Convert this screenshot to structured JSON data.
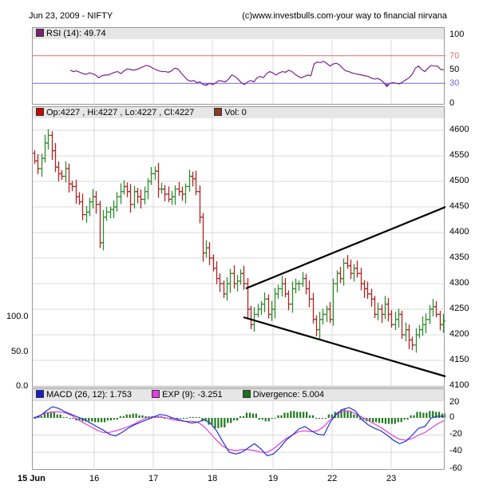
{
  "header": {
    "date_symbol": "Jun 23, 2009 -  NIFTY",
    "copyright": "(c)www.investbulls.com-your way to financial nirvana"
  },
  "colors": {
    "up_bar": "#2e8b2e",
    "down_bar": "#b22222",
    "rsi_line": "#7f1f8f",
    "rsi_fill": "#6a5cff",
    "line_70": "#e06a6a",
    "line_30": "#6a6ad6",
    "macd_line": "#2233cc",
    "exp_line": "#e23ce2",
    "divergence": "#1e7a1e",
    "grid": "#d8d8d8",
    "panel_header": "#e6e6e6"
  },
  "rsi_panel": {
    "legend": {
      "label": "RSI (14): 49.74",
      "color": "#7f1f6f"
    },
    "axis": [
      "100",
      "70",
      "50",
      "30",
      "0"
    ]
  },
  "price_panel": {
    "legend": [
      {
        "label": "Op:4227 , Hi:4227 , Lo:4227 , Cl:4227",
        "color": "#cc0000"
      },
      {
        "label": "Vol: 0",
        "color": "#8b3a2a"
      }
    ],
    "axis_right": [
      "4600",
      "4550",
      "4500",
      "4450",
      "4400",
      "4350",
      "4300",
      "4250",
      "4200",
      "4150",
      "4100"
    ],
    "axis_left": [
      "100.0",
      "50.0",
      "0.0"
    ]
  },
  "macd_panel": {
    "legend": [
      {
        "label": "MACD (26, 12): 1.753",
        "color": "#1a1acc"
      },
      {
        "label": "EXP (9): -3.251",
        "color": "#e23ce2"
      },
      {
        "label": "Divergence: 5.004",
        "color": "#1e6e1e"
      }
    ],
    "axis": [
      "20",
      "0",
      "-20",
      "-40",
      "-60"
    ]
  },
  "x_axis": [
    "15 Jun",
    "16",
    "17",
    "18",
    "19",
    "22",
    "23"
  ],
  "chart_data": [
    {
      "type": "line",
      "title": "RSI (14)",
      "current_value": 49.74,
      "ylim": [
        0,
        100
      ],
      "reference_lines": [
        70,
        30
      ],
      "x": [
        "15 Jun",
        "16",
        "17",
        "18",
        "19",
        "22",
        "23"
      ],
      "values": [
        49,
        47,
        48,
        46,
        44,
        43,
        45,
        44,
        42,
        38,
        41,
        42,
        42,
        44,
        46,
        47,
        44,
        48,
        51,
        50,
        49,
        50,
        52,
        54,
        56,
        55,
        52,
        50,
        48,
        47,
        47,
        46,
        48,
        52,
        51,
        45,
        40,
        35,
        33,
        34,
        31,
        32,
        28,
        27,
        30,
        28,
        31,
        34,
        33,
        32,
        36,
        42,
        40,
        36,
        31,
        28,
        32,
        34,
        32,
        38,
        40,
        38,
        44,
        47,
        45,
        42,
        45,
        47,
        46,
        49,
        47,
        43,
        40,
        38,
        40,
        42,
        41,
        58,
        61,
        60,
        62,
        59,
        55,
        58,
        59,
        57,
        52,
        48,
        47,
        45,
        44,
        43,
        42,
        41,
        40,
        38,
        36,
        37,
        35,
        31,
        25,
        30,
        31,
        30,
        29,
        32,
        35,
        38,
        43,
        52,
        55,
        50,
        47,
        52,
        56,
        55,
        55,
        50,
        49.74
      ]
    },
    {
      "type": "bar",
      "subtype": "ohlc",
      "title": "NIFTY",
      "ylim": [
        4100,
        4620
      ],
      "last": {
        "open": 4227,
        "high": 4227,
        "low": 4227,
        "close": 4227
      },
      "volume": 0,
      "x": [
        "15 Jun",
        "16",
        "17",
        "18",
        "19",
        "22",
        "23"
      ],
      "closes": [
        4540,
        4525,
        4545,
        4575,
        4590,
        4560,
        4528,
        4515,
        4510,
        4525,
        4495,
        4490,
        4470,
        4460,
        4435,
        4440,
        4460,
        4470,
        4455,
        4380,
        4430,
        4440,
        4445,
        4450,
        4470,
        4480,
        4490,
        4480,
        4455,
        4480,
        4470,
        4465,
        4480,
        4500,
        4515,
        4520,
        4485,
        4485,
        4475,
        4465,
        4470,
        4485,
        4480,
        4475,
        4490,
        4510,
        4505,
        4480,
        4430,
        4360,
        4370,
        4350,
        4330,
        4310,
        4300,
        4280,
        4300,
        4320,
        4300,
        4305,
        4320,
        4300,
        4250,
        4220,
        4240,
        4250,
        4260,
        4270,
        4240,
        4250,
        4280,
        4290,
        4300,
        4280,
        4260,
        4290,
        4300,
        4300,
        4310,
        4290,
        4270,
        4230,
        4210,
        4230,
        4240,
        4250,
        4230,
        4300,
        4320,
        4310,
        4340,
        4335,
        4320,
        4330,
        4320,
        4300,
        4290,
        4280,
        4270,
        4240,
        4250,
        4240,
        4260,
        4240,
        4220,
        4230,
        4240,
        4200,
        4210,
        4190,
        4180,
        4200,
        4210,
        4220,
        4230,
        4250,
        4255,
        4240,
        4220,
        4227
      ],
      "trendlines": [
        {
          "from": [
            4285,
            "18 pm"
          ],
          "to": [
            4448,
            "23 end"
          ]
        },
        {
          "from": [
            4230,
            "18 pm"
          ],
          "to": [
            4110,
            "23 end"
          ]
        }
      ],
      "secondary_axis": {
        "ticks": [
          "100.0",
          "50.0",
          "0.0"
        ]
      }
    },
    {
      "type": "line",
      "title": "MACD (26, 12)",
      "ylim": [
        -60,
        20
      ],
      "x": [
        "15 Jun",
        "16",
        "17",
        "18",
        "19",
        "22",
        "23"
      ],
      "series": [
        {
          "name": "MACD (26, 12)",
          "current": 1.753,
          "values": [
            0,
            2,
            8,
            13,
            11,
            7,
            4,
            1,
            -2,
            -6,
            -10,
            -14,
            -19,
            -21,
            -17,
            -12,
            -8,
            -5,
            -2,
            1,
            4,
            3,
            0,
            -2,
            -4,
            -6,
            -5,
            -2,
            -6,
            -15,
            -28,
            -40,
            -42,
            -40,
            -35,
            -30,
            -36,
            -44,
            -42,
            -35,
            -26,
            -20,
            -13,
            -10,
            -15,
            -19,
            -20,
            -5,
            5,
            10,
            12,
            8,
            -2,
            -8,
            -12,
            -15,
            -20,
            -26,
            -30,
            -27,
            -20,
            -12,
            -10,
            0,
            2,
            1.753
          ]
        },
        {
          "name": "EXP (9)",
          "current": -3.251,
          "values": [
            0,
            3,
            6,
            7,
            7,
            6,
            3,
            -2,
            -6,
            -10,
            -14,
            -17,
            -17,
            -15,
            -13,
            -10,
            -7,
            -3,
            0,
            1,
            1,
            0,
            -2,
            -3,
            -4,
            -4,
            -5,
            -10,
            -18,
            -26,
            -33,
            -37,
            -38,
            -37,
            -37,
            -38,
            -40,
            -40,
            -36,
            -30,
            -24,
            -20,
            -16,
            -15,
            -16,
            -15,
            -10,
            -2,
            4,
            8,
            8,
            5,
            1,
            -3,
            -7,
            -11,
            -16,
            -21,
            -25,
            -26,
            -24,
            -20,
            -17,
            -12,
            -7,
            -3.251
          ]
        },
        {
          "name": "Divergence",
          "current": 5.004,
          "values": [
            0,
            2,
            6,
            7,
            4,
            1,
            -1,
            -3,
            -4,
            -4,
            -5,
            -5,
            -3,
            -2,
            2,
            4,
            5,
            3,
            2,
            2,
            2,
            0,
            0,
            0,
            0,
            1,
            1,
            -4,
            -8,
            -12,
            -11,
            -6,
            -3,
            2,
            6,
            5,
            -2,
            -4,
            -1,
            3,
            6,
            8,
            7,
            7,
            3,
            -1,
            0,
            4,
            7,
            10,
            8,
            4,
            -2,
            -4,
            -5,
            -6,
            -7,
            -7,
            -5,
            -2,
            3,
            7,
            6,
            8,
            7,
            5.004
          ]
        }
      ]
    }
  ]
}
